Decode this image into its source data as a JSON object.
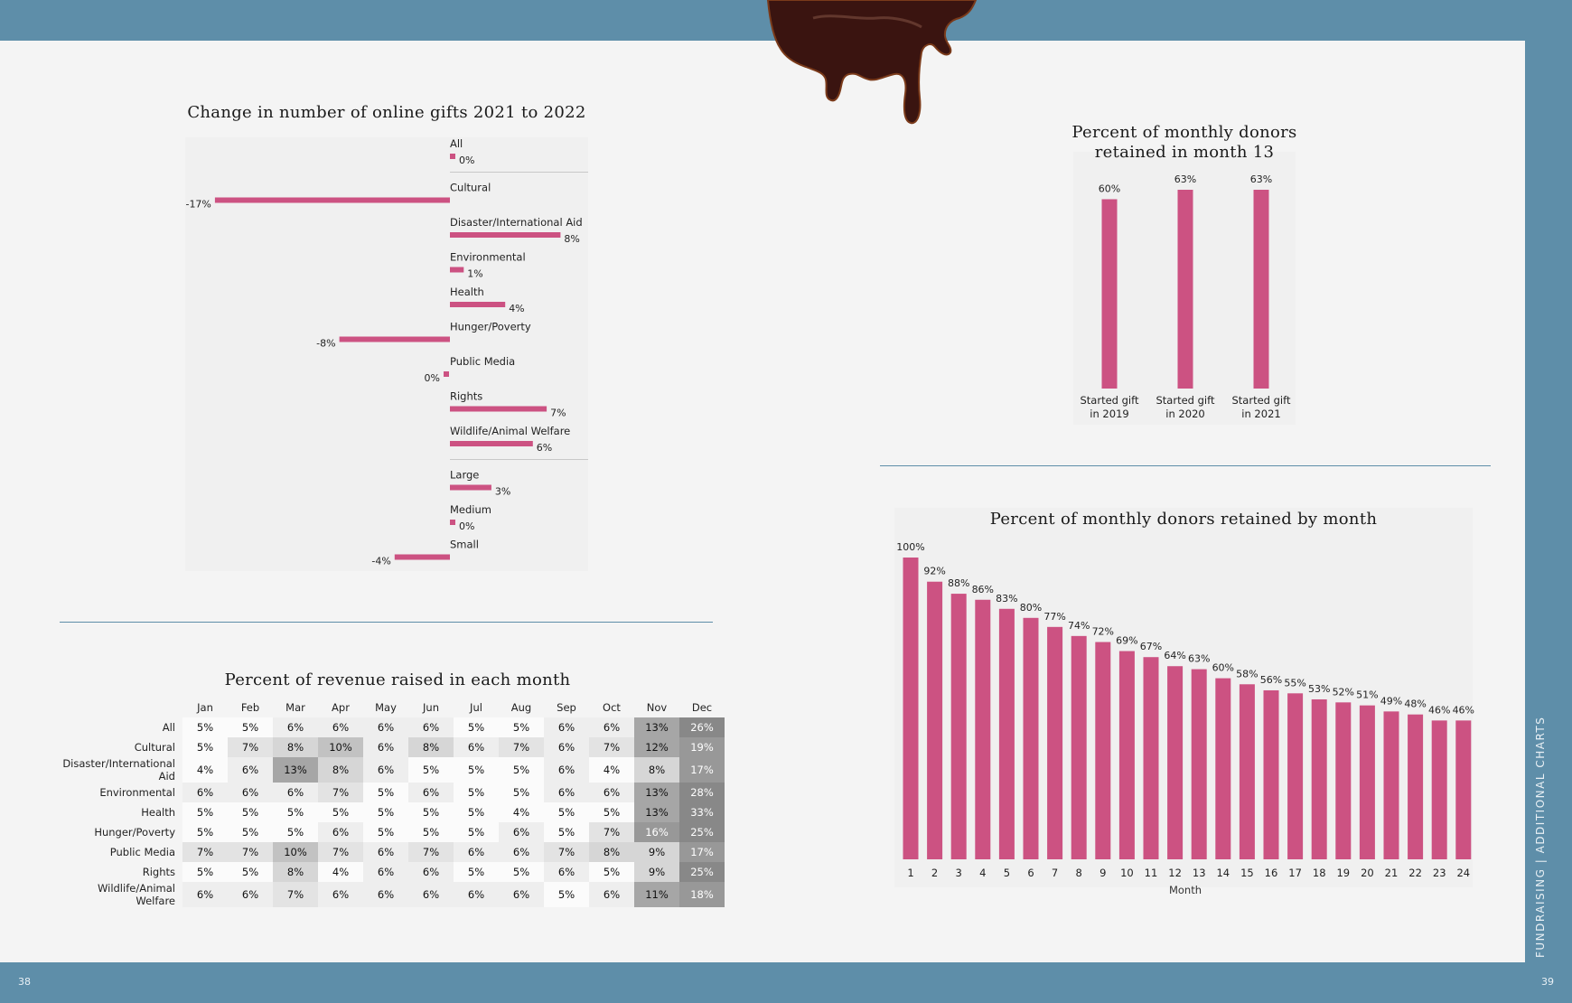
{
  "page": {
    "left_number": "38",
    "right_number": "39",
    "side_label": "FUNDRAISING | ADDITIONAL CHARTS",
    "accent_color": "#cc5282",
    "frame_color": "#5e8ea9"
  },
  "chart_data": [
    {
      "type": "bar",
      "orientation": "horizontal",
      "title": "Change in number of online gifts 2021 to 2022",
      "groups": [
        {
          "items": [
            {
              "label": "All",
              "value": 0,
              "display": "0%"
            }
          ]
        },
        {
          "items": [
            {
              "label": "Cultural",
              "value": -17,
              "display": "-17%"
            },
            {
              "label": "Disaster/International Aid",
              "value": 8,
              "display": "8%"
            },
            {
              "label": "Environmental",
              "value": 1,
              "display": "1%"
            },
            {
              "label": "Health",
              "value": 4,
              "display": "4%"
            },
            {
              "label": "Hunger/Poverty",
              "value": -8,
              "display": "-8%"
            },
            {
              "label": "Public Media",
              "value": 0,
              "display": "0%"
            },
            {
              "label": "Rights",
              "value": 7,
              "display": "7%"
            },
            {
              "label": "Wildlife/Animal Welfare",
              "value": 6,
              "display": "6%"
            }
          ]
        },
        {
          "items": [
            {
              "label": "Large",
              "value": 3,
              "display": "3%"
            },
            {
              "label": "Medium",
              "value": 0,
              "display": "0%"
            },
            {
              "label": "Small",
              "value": -4,
              "display": "-4%"
            }
          ]
        }
      ]
    },
    {
      "type": "bar",
      "title_lines": [
        "Percent of monthly donors",
        "retained in month 13"
      ],
      "categories": [
        [
          "Started gift",
          "in 2019"
        ],
        [
          "Started gift",
          "in 2020"
        ],
        [
          "Started gift",
          "in 2021"
        ]
      ],
      "values": [
        60,
        63,
        63
      ],
      "ylim": [
        0,
        63
      ]
    },
    {
      "type": "bar",
      "title": "Percent of monthly donors retained by month",
      "xlabel": "Month",
      "categories": [
        "1",
        "2",
        "3",
        "4",
        "5",
        "6",
        "7",
        "8",
        "9",
        "10",
        "11",
        "12",
        "13",
        "14",
        "15",
        "16",
        "17",
        "18",
        "19",
        "20",
        "21",
        "22",
        "23",
        "24"
      ],
      "values": [
        100,
        92,
        88,
        86,
        83,
        80,
        77,
        74,
        72,
        69,
        67,
        64,
        63,
        60,
        58,
        56,
        55,
        53,
        52,
        51,
        49,
        48,
        46,
        46
      ],
      "ylim": [
        0,
        100
      ]
    },
    {
      "type": "heatmap",
      "title": "Percent of revenue raised in each month",
      "columns": [
        "Jan",
        "Feb",
        "Mar",
        "Apr",
        "May",
        "Jun",
        "Jul",
        "Aug",
        "Sep",
        "Oct",
        "Nov",
        "Dec"
      ],
      "rows": [
        {
          "label": "All",
          "values": [
            5,
            5,
            6,
            6,
            6,
            6,
            5,
            5,
            6,
            6,
            13,
            26
          ]
        },
        {
          "label": "Cultural",
          "values": [
            5,
            7,
            8,
            10,
            6,
            8,
            6,
            7,
            6,
            7,
            12,
            19
          ]
        },
        {
          "label": "Disaster/International Aid",
          "values": [
            4,
            6,
            13,
            8,
            6,
            5,
            5,
            5,
            6,
            4,
            8,
            17
          ]
        },
        {
          "label": "Environmental",
          "values": [
            6,
            6,
            6,
            7,
            5,
            6,
            5,
            5,
            6,
            6,
            13,
            28
          ]
        },
        {
          "label": "Health",
          "values": [
            5,
            5,
            5,
            5,
            5,
            5,
            5,
            4,
            5,
            5,
            13,
            33
          ]
        },
        {
          "label": "Hunger/Poverty",
          "values": [
            5,
            5,
            5,
            6,
            5,
            5,
            5,
            6,
            5,
            7,
            16,
            25
          ]
        },
        {
          "label": "Public Media",
          "values": [
            7,
            7,
            10,
            7,
            6,
            7,
            6,
            6,
            7,
            8,
            9,
            17
          ]
        },
        {
          "label": "Rights",
          "values": [
            5,
            5,
            8,
            4,
            6,
            6,
            5,
            5,
            6,
            5,
            9,
            25
          ]
        },
        {
          "label": "Wildlife/Animal Welfare",
          "values": [
            6,
            6,
            7,
            6,
            6,
            6,
            6,
            6,
            5,
            6,
            11,
            18
          ]
        }
      ]
    }
  ]
}
